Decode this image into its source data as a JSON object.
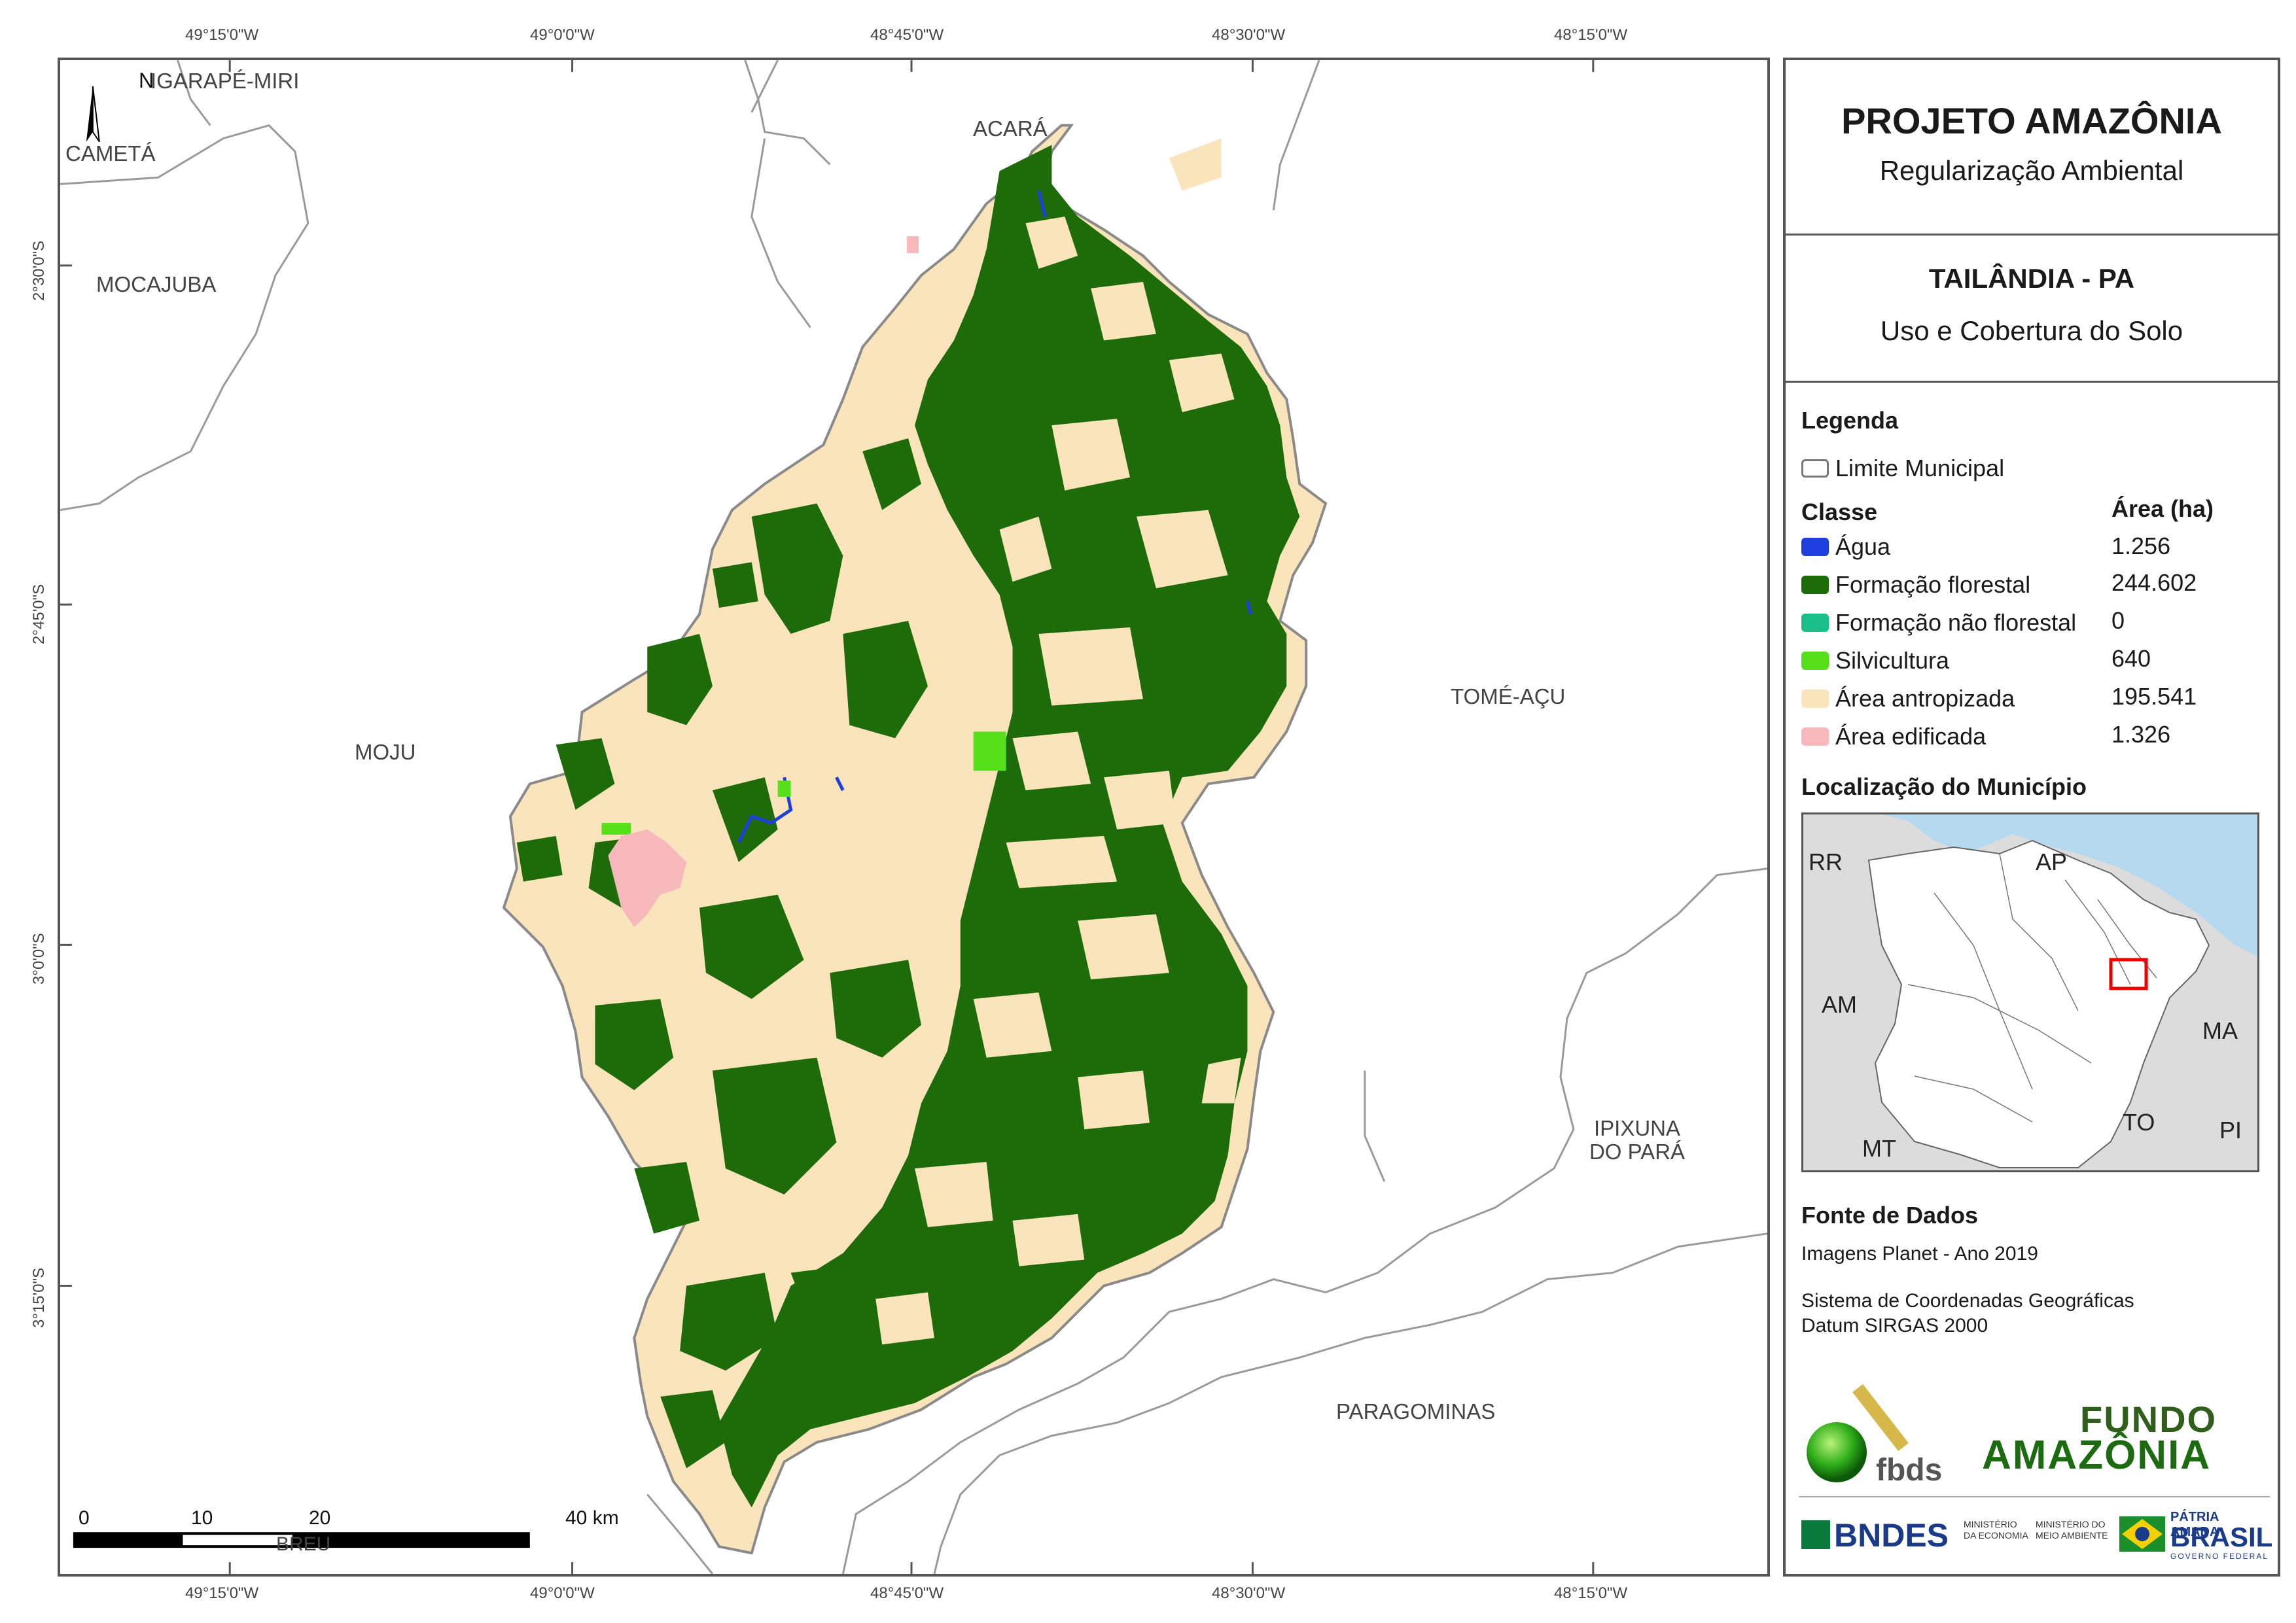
{
  "map": {
    "coords_top": [
      "49°15'0\"W",
      "49°0'0\"W",
      "48°45'0\"W",
      "48°30'0\"W",
      "48°15'0\"W"
    ],
    "coords_bottom": [
      "49°15'0\"W",
      "49°0'0\"W",
      "48°45'0\"W",
      "48°30'0\"W",
      "48°15'0\"W"
    ],
    "coords_left": [
      "2°30'0\"S",
      "2°45'0\"S",
      "3°0'0\"S",
      "3°15'0\"S"
    ],
    "north_label": "N",
    "municipalities": {
      "igarape_miri": "IGARAPÉ-MIRI",
      "cameta": "CAMETÁ",
      "mocajuba": "MOCAJUBA",
      "acara": "ACARÁ",
      "moju": "MOJU",
      "tome_acu": "TOMÉ-AÇU",
      "ipixuna_line1": "IPIXUNA",
      "ipixuna_line2": "DO PARÁ",
      "paragominas": "PARAGOMINAS",
      "breu": "BREU"
    },
    "scale": {
      "labels": [
        "0",
        "10",
        "20",
        "40 km"
      ]
    },
    "colors": {
      "forest": "#1e6b0a",
      "anthropized": "#f9e4bb",
      "water": "#1f3ee0",
      "silviculture": "#55e01a",
      "built": "#f7b8bb",
      "nonforest": "#1bbf8a",
      "boundary": "#8a8a8a"
    }
  },
  "panel": {
    "title": "PROJETO AMAZÔNIA",
    "subtitle": "Regularização Ambiental",
    "municipality": "TAILÂNDIA - PA",
    "theme": "Uso e Cobertura do Solo",
    "legend_heading": "Legenda",
    "boundary_label": "Limite Municipal",
    "class_header": "Classe",
    "area_header": "Área (ha)",
    "classes": [
      {
        "label": "Água",
        "area": "1.256",
        "color": "#1f3ee0"
      },
      {
        "label": "Formação florestal",
        "area": "244.602",
        "color": "#1e6b0a"
      },
      {
        "label": "Formação não florestal",
        "area": "0",
        "color": "#1bbf8a"
      },
      {
        "label": "Silvicultura",
        "area": "640",
        "color": "#55e01a"
      },
      {
        "label": "Área antropizada",
        "area": "195.541",
        "color": "#f9e4bb"
      },
      {
        "label": "Área edificada",
        "area": "1.326",
        "color": "#f7b8bb"
      }
    ],
    "location_heading": "Localização do Município",
    "inset_labels": {
      "rr": "RR",
      "ap": "AP",
      "am": "AM",
      "ma": "MA",
      "to": "TO",
      "mt": "MT",
      "pi": "PI"
    },
    "sources_heading": "Fonte de Dados",
    "source_lines": [
      "Imagens Planet - Ano 2019",
      "Sistema de Coordenadas Geográficas",
      "Datum SIRGAS 2000"
    ],
    "logos": {
      "fbds": "fbds",
      "fundo_line1": "FUNDO",
      "fundo_line2": "AMAZÔNIA",
      "bndes": "BNDES",
      "min_economia": "MINISTÉRIO DA ECONOMIA",
      "min_meio": "MINISTÉRIO DO MEIO AMBIENTE",
      "patria": "PÁTRIA AMADA",
      "brasil": "BRASIL",
      "governo": "GOVERNO FEDERAL"
    }
  }
}
